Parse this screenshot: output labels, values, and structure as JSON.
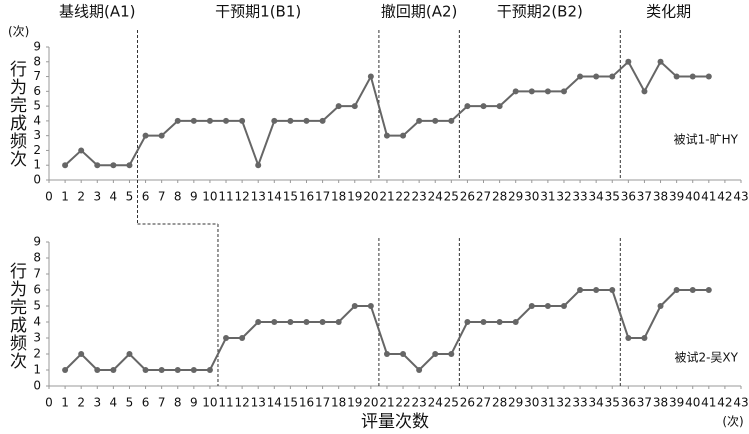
{
  "chart_data": [
    {
      "type": "line",
      "phase_labels": [
        "基线期(A1)",
        "干预期1(B1)",
        "撤回期(A2)",
        "干预期2(B2)",
        "类化期"
      ],
      "phase_changes": [
        5.5,
        20.5,
        25.5,
        35.5
      ],
      "y_unit": "(次)",
      "y_label": "行为完成频次",
      "annotation": "被试1-旷HY",
      "x": [
        1,
        2,
        3,
        4,
        5,
        6,
        7,
        8,
        9,
        10,
        11,
        12,
        13,
        14,
        15,
        16,
        17,
        18,
        19,
        20,
        21,
        22,
        23,
        24,
        25,
        26,
        27,
        28,
        29,
        30,
        31,
        32,
        33,
        34,
        35,
        36,
        37,
        38,
        39,
        40,
        41
      ],
      "series": [
        {
          "color": "#666666",
          "values": [
            1,
            2,
            1,
            1,
            1,
            3,
            3,
            4,
            4,
            4,
            4,
            4,
            1,
            4,
            4,
            4,
            4,
            5,
            5,
            7,
            3,
            3,
            4,
            4,
            4,
            5,
            5,
            5,
            6,
            6,
            6,
            6,
            7,
            7,
            7,
            8,
            6,
            8,
            7,
            7,
            7
          ]
        }
      ],
      "xlim": [
        0,
        43
      ],
      "xticks": [
        0,
        1,
        2,
        3,
        4,
        5,
        6,
        7,
        8,
        9,
        10,
        11,
        12,
        13,
        14,
        15,
        16,
        17,
        18,
        19,
        20,
        21,
        22,
        23,
        24,
        25,
        26,
        27,
        28,
        29,
        30,
        31,
        32,
        33,
        34,
        35,
        36,
        37,
        38,
        39,
        40,
        41,
        42,
        43
      ],
      "ylim": [
        0,
        9
      ],
      "yticks": [
        0,
        1,
        2,
        3,
        4,
        5,
        6,
        7,
        8,
        9
      ]
    },
    {
      "type": "line",
      "phase_changes": [
        10.5,
        20.5,
        25.5,
        35.5
      ],
      "y_label": "行为完成频次",
      "annotation": "被试2-吴XY",
      "x_label": "评量次数",
      "x_unit": "(次)",
      "x": [
        1,
        2,
        3,
        4,
        5,
        6,
        7,
        8,
        9,
        10,
        11,
        12,
        13,
        14,
        15,
        16,
        17,
        18,
        19,
        20,
        21,
        22,
        23,
        24,
        25,
        26,
        27,
        28,
        29,
        30,
        31,
        32,
        33,
        34,
        35,
        36,
        37,
        38,
        39,
        40,
        41
      ],
      "series": [
        {
          "color": "#666666",
          "values": [
            1,
            2,
            1,
            1,
            2,
            1,
            1,
            1,
            1,
            1,
            3,
            3,
            4,
            4,
            4,
            4,
            4,
            4,
            5,
            5,
            2,
            2,
            1,
            2,
            2,
            4,
            4,
            4,
            4,
            5,
            5,
            5,
            6,
            6,
            6,
            3,
            3,
            5,
            6,
            6,
            6
          ]
        }
      ],
      "xlim": [
        0,
        43
      ],
      "xticks": [
        0,
        1,
        2,
        3,
        4,
        5,
        6,
        7,
        8,
        9,
        10,
        11,
        12,
        13,
        14,
        15,
        16,
        17,
        18,
        19,
        20,
        21,
        22,
        23,
        24,
        25,
        26,
        27,
        28,
        29,
        30,
        31,
        32,
        33,
        34,
        35,
        36,
        37,
        38,
        39,
        40,
        41,
        42,
        43
      ],
      "ylim": [
        0,
        9
      ],
      "yticks": [
        0,
        1,
        2,
        3,
        4,
        5,
        6,
        7,
        8,
        9
      ]
    }
  ]
}
